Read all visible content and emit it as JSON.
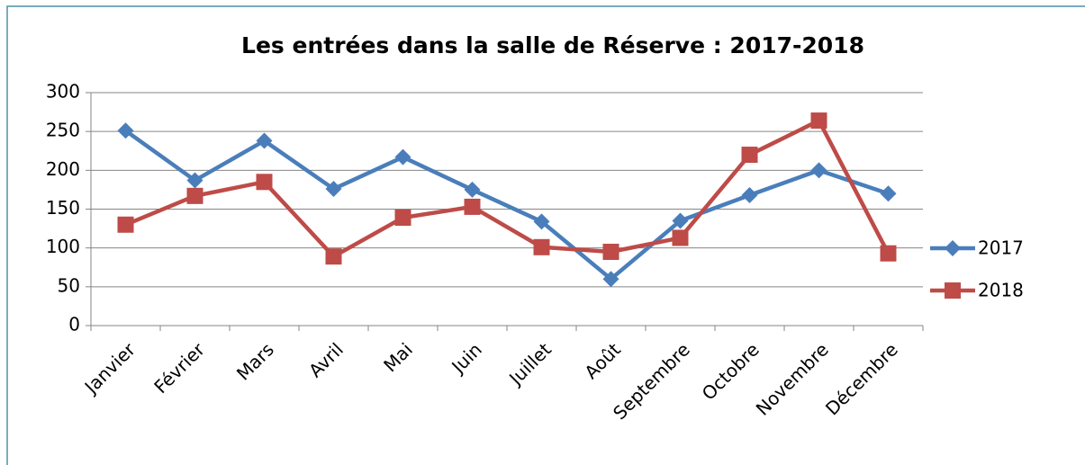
{
  "chart_data": {
    "type": "line",
    "title": "Les entrées dans la salle de Réserve : 2017-2018",
    "categories": [
      "Janvier",
      "Février",
      "Mars",
      "Avril",
      "Mai",
      "Juin",
      "Juillet",
      "Août",
      "Septembre",
      "Octobre",
      "Novembre",
      "Décembre"
    ],
    "series": [
      {
        "name": "2017",
        "color": "#4a7ebb",
        "marker": "diamond",
        "values": [
          251,
          187,
          238,
          176,
          217,
          175,
          134,
          60,
          135,
          168,
          200,
          170
        ]
      },
      {
        "name": "2018",
        "color": "#be4b48",
        "marker": "square",
        "values": [
          130,
          167,
          185,
          89,
          139,
          153,
          101,
          95,
          113,
          220,
          264,
          93
        ]
      }
    ],
    "ylim": [
      0,
      300
    ],
    "yticks": [
      0,
      50,
      100,
      150,
      200,
      250,
      300
    ],
    "grid": true,
    "legend": "right"
  }
}
